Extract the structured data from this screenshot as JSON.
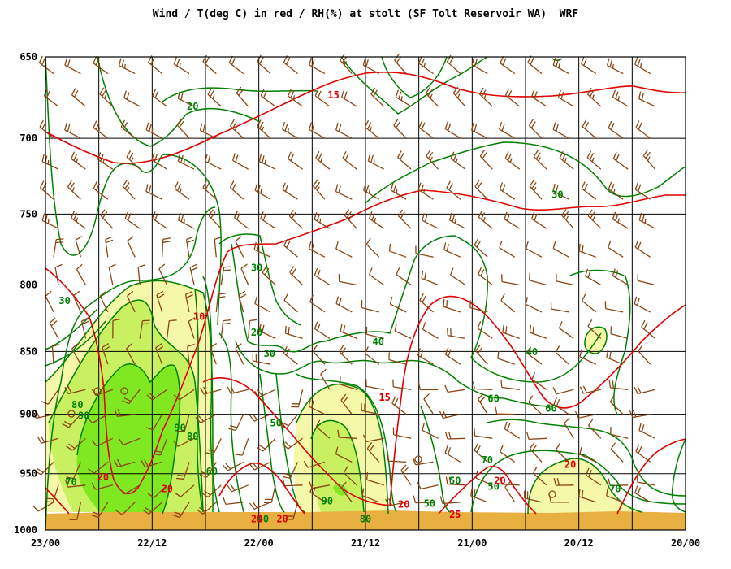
{
  "chart_data": {
    "type": "contour",
    "title": "Wind / T(deg C) in red / RH(%) at stolt (SF Tolt Reservoir WA)  WRF",
    "y_axis": {
      "quantity": "pressure (hPa)",
      "range": [
        1000,
        650
      ],
      "ticks": [
        650,
        700,
        750,
        800,
        850,
        900,
        950,
        1000
      ],
      "scale": "log"
    },
    "x_axis": {
      "range": [
        "23/00",
        "20/00"
      ],
      "ticks": [
        "23/00",
        "22/12",
        "22/00",
        "21/12",
        "21/00",
        "20/12",
        "20/00"
      ],
      "minor_ticks_per_interval": 1,
      "direction": "time decreasing to the right"
    },
    "grid": true,
    "colors": {
      "temperature": "#e00000",
      "rh": "#008000",
      "wind_barbs": "#8b4513",
      "fill_rh70": "#f5f8a8",
      "fill_rh80": "#c8f060",
      "fill_rh90": "#80e820",
      "ground": "#e8b040"
    },
    "temperature_labels": [
      {
        "value": "15",
        "x": 0.45,
        "p": 675
      },
      {
        "value": "10",
        "x": 0.24,
        "p": 826
      },
      {
        "value": "15",
        "x": 0.53,
        "p": 889
      },
      {
        "value": "20",
        "x": 0.09,
        "p": 956
      },
      {
        "value": "20",
        "x": 0.19,
        "p": 966
      },
      {
        "value": "20",
        "x": 0.56,
        "p": 980
      },
      {
        "value": "25",
        "x": 0.64,
        "p": 989
      },
      {
        "value": "20",
        "x": 0.82,
        "p": 945
      },
      {
        "value": "20",
        "x": 0.71,
        "p": 959
      },
      {
        "value": "20",
        "x": 0.33,
        "p": 993
      },
      {
        "value": "20",
        "x": 0.37,
        "p": 993
      }
    ],
    "rh_labels": [
      {
        "value": "20",
        "x": 0.23,
        "p": 682
      },
      {
        "value": "30",
        "x": 0.8,
        "p": 739
      },
      {
        "value": "30",
        "x": 0.33,
        "p": 790
      },
      {
        "value": "30",
        "x": 0.03,
        "p": 814
      },
      {
        "value": "20",
        "x": 0.33,
        "p": 838
      },
      {
        "value": "30",
        "x": 0.35,
        "p": 854
      },
      {
        "value": "40",
        "x": 0.52,
        "p": 845
      },
      {
        "value": "40",
        "x": 0.76,
        "p": 853
      },
      {
        "value": "60",
        "x": 0.7,
        "p": 890
      },
      {
        "value": "60",
        "x": 0.79,
        "p": 898
      },
      {
        "value": "80",
        "x": 0.05,
        "p": 895
      },
      {
        "value": "90",
        "x": 0.06,
        "p": 904
      },
      {
        "value": "50",
        "x": 0.36,
        "p": 910
      },
      {
        "value": "90",
        "x": 0.21,
        "p": 914
      },
      {
        "value": "80",
        "x": 0.23,
        "p": 921
      },
      {
        "value": "70",
        "x": 0.69,
        "p": 941
      },
      {
        "value": "70",
        "x": 0.04,
        "p": 960
      },
      {
        "value": "60",
        "x": 0.26,
        "p": 951
      },
      {
        "value": "50",
        "x": 0.7,
        "p": 964
      },
      {
        "value": "50",
        "x": 0.64,
        "p": 959
      },
      {
        "value": "70",
        "x": 0.89,
        "p": 966
      },
      {
        "value": "50",
        "x": 0.6,
        "p": 979
      },
      {
        "value": "90",
        "x": 0.44,
        "p": 977
      },
      {
        "value": "80",
        "x": 0.5,
        "p": 993
      },
      {
        "value": "40",
        "x": 0.34,
        "p": 993
      }
    ]
  }
}
